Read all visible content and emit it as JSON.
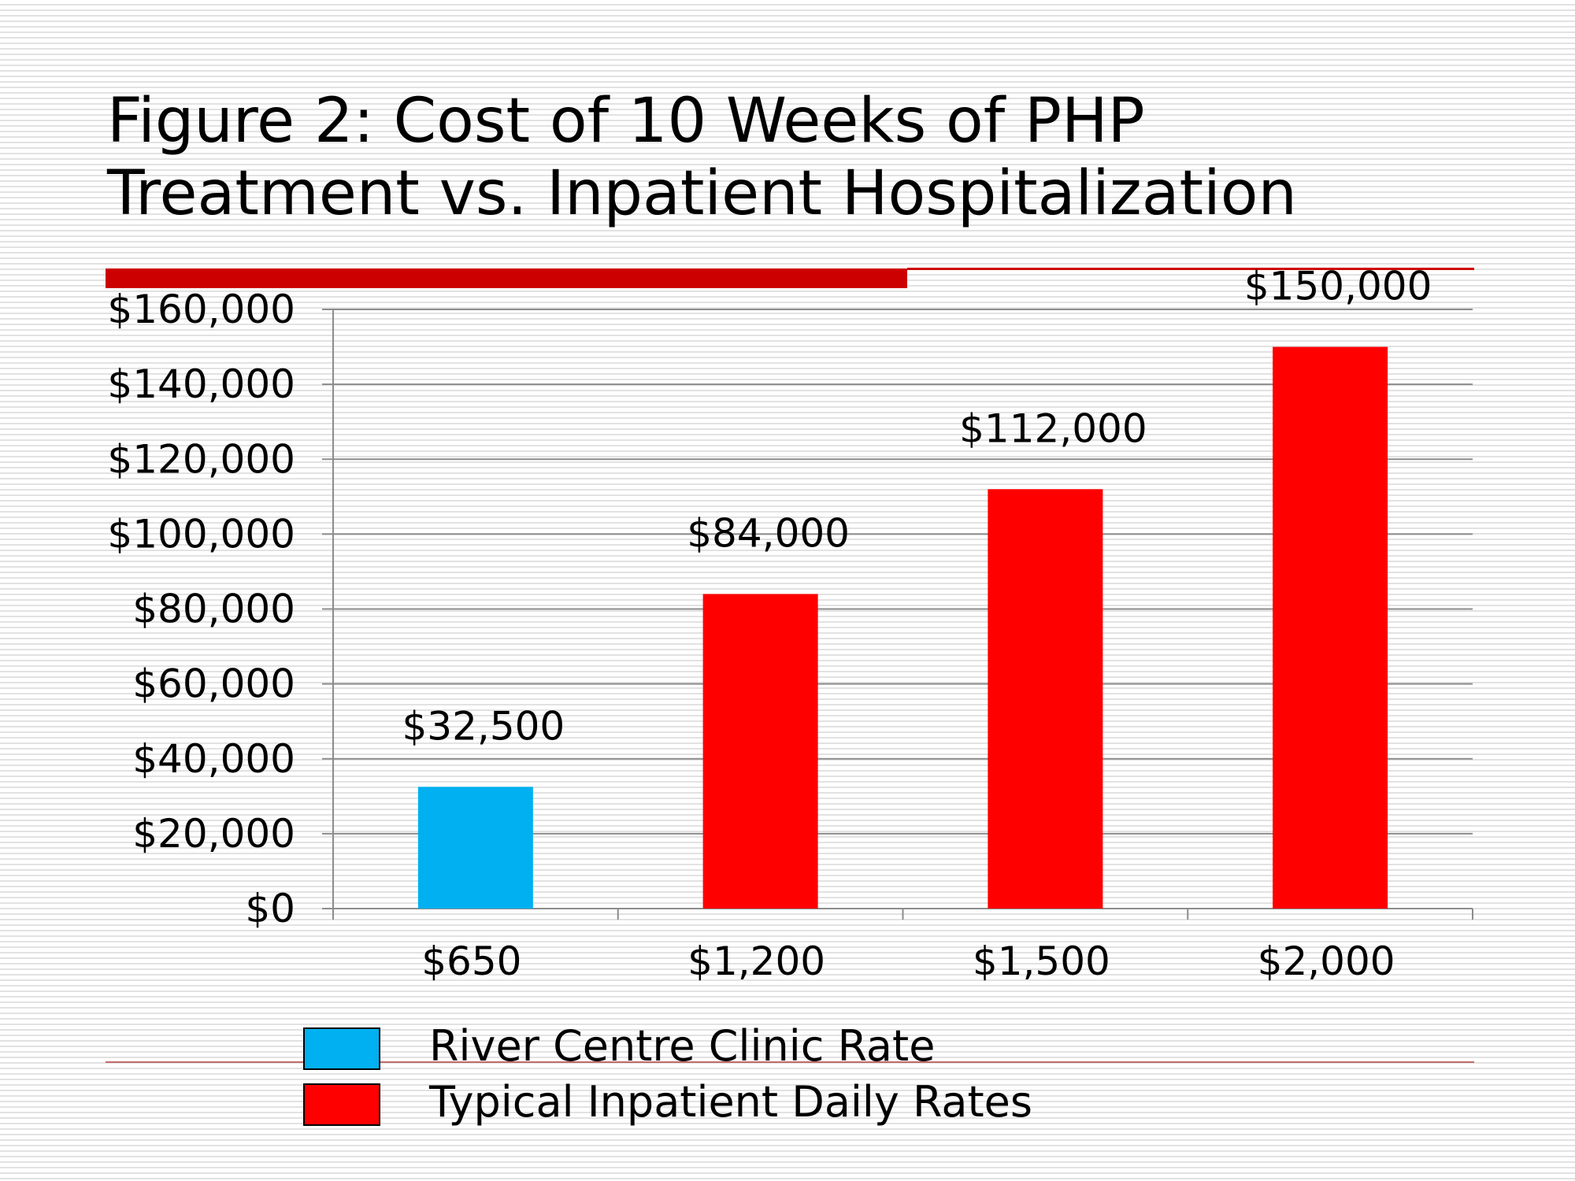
{
  "title": {
    "line1": "Figure 2: Cost of 10 Weeks of PHP",
    "line2": "Treatment vs. Inpatient Hospitalization"
  },
  "chart_data": {
    "type": "bar",
    "categories": [
      "$650",
      "$1,200",
      "$1,500",
      "$2,000"
    ],
    "values": [
      32500,
      84000,
      112000,
      150000
    ],
    "data_labels": [
      "$32,500",
      "$84,000",
      "$112,000",
      "$150,000"
    ],
    "bar_series": [
      "River Centre Clinic Rate",
      "Typical Inpatient Daily Rates",
      "Typical Inpatient Daily Rates",
      "Typical Inpatient Daily Rates"
    ],
    "ylim": [
      0,
      160000
    ],
    "y_ticks": [
      0,
      20000,
      40000,
      60000,
      80000,
      100000,
      120000,
      140000,
      160000
    ],
    "y_tick_labels": [
      "$0",
      "$20,000",
      "$40,000",
      "$60,000",
      "$80,000",
      "$100,000",
      "$120,000",
      "$140,000",
      "$160,000"
    ],
    "grid": true,
    "legend_position": "bottom",
    "series": [
      {
        "name": "River Centre Clinic Rate",
        "color": "#00b0f0"
      },
      {
        "name": "Typical Inpatient Daily Rates",
        "color": "#ff0000"
      }
    ]
  },
  "legend": {
    "items": [
      {
        "label": "River Centre Clinic Rate",
        "color": "#00b0f0"
      },
      {
        "label": "Typical Inpatient Daily Rates",
        "color": "#ff0000"
      }
    ]
  },
  "colors": {
    "accent_rule": "#cc0000",
    "gridline": "#8c8c8c"
  }
}
